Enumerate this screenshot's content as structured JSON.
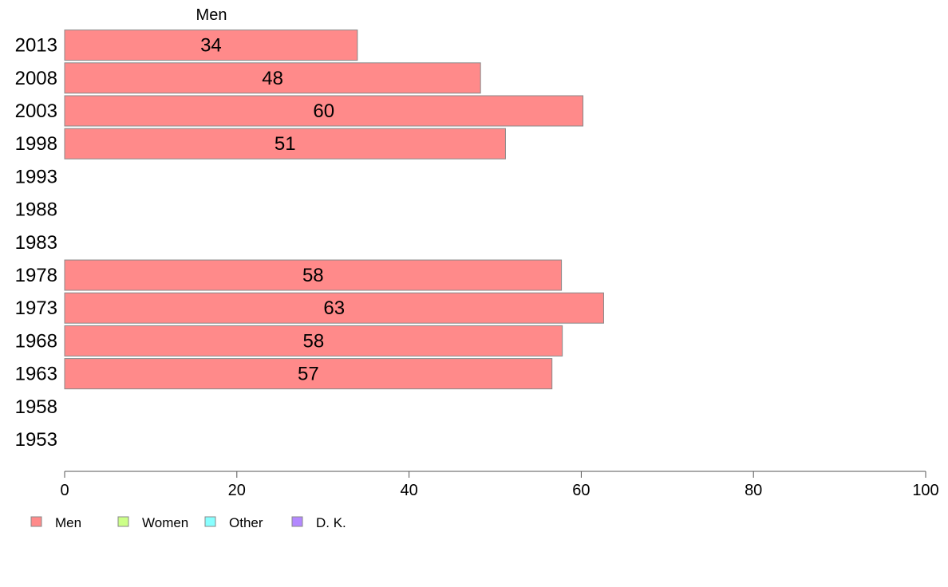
{
  "chart_data": {
    "type": "bar",
    "orientation": "horizontal",
    "title": "Men",
    "categories": [
      "2013",
      "2008",
      "2003",
      "1998",
      "1993",
      "1988",
      "1983",
      "1978",
      "1973",
      "1968",
      "1963",
      "1958",
      "1953"
    ],
    "series": [
      {
        "name": "Men",
        "values": [
          34,
          48.3,
          60.2,
          51.2,
          null,
          null,
          null,
          57.7,
          62.6,
          57.8,
          56.6,
          null,
          null
        ],
        "labels": [
          "34",
          "48",
          "60",
          "51",
          "",
          "",
          "",
          "58",
          "63",
          "58",
          "57",
          "",
          ""
        ]
      }
    ],
    "xlim": [
      0,
      100
    ],
    "xticks": [
      0,
      20,
      40,
      60,
      80,
      100
    ],
    "xtick_labels": [
      "0",
      "20",
      "40",
      "60",
      "80",
      "100"
    ],
    "grid": false,
    "legend": {
      "placement": "bottom-left",
      "entries": [
        {
          "name": "Men",
          "color": "#ff8a8a"
        },
        {
          "name": "Women",
          "color": "#ccff88"
        },
        {
          "name": "Other",
          "color": "#88ffff"
        },
        {
          "name": "D. K.",
          "color": "#b388ff"
        }
      ]
    },
    "colors": {
      "bar_fill": "#ff8a8a",
      "bar_stroke": "#888888",
      "axis": "#555555"
    }
  }
}
